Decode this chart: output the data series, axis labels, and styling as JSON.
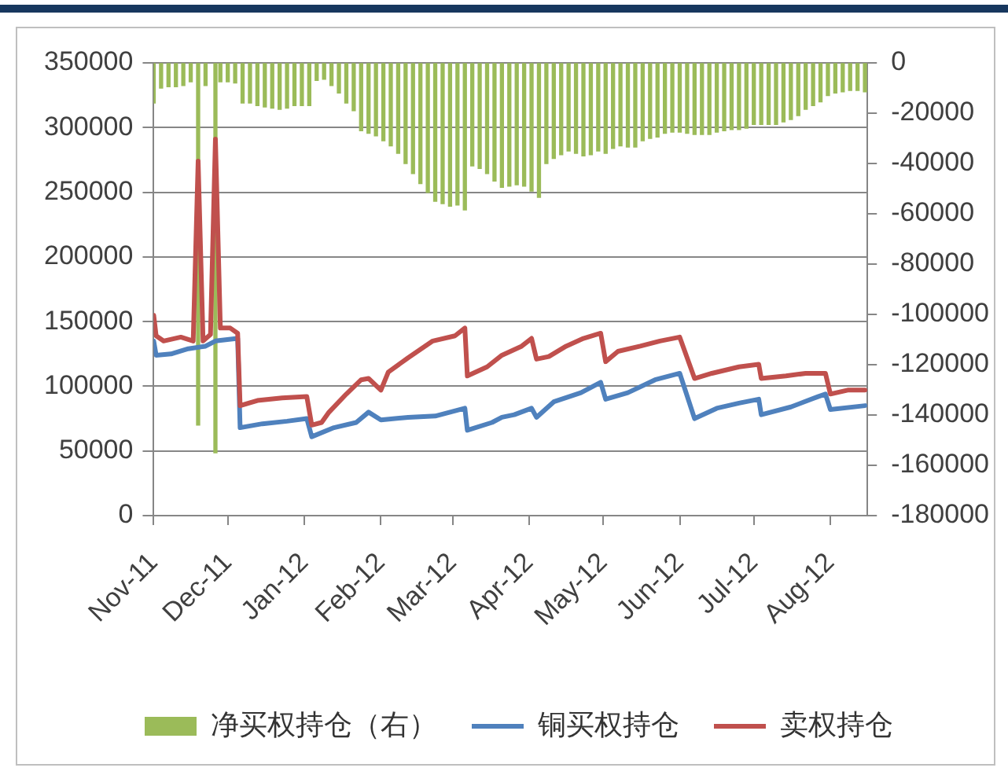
{
  "chart_data": {
    "type": "bar",
    "legend": "bottom",
    "grid": "y",
    "xlim": [
      "2011-11-01",
      "2012-08-16"
    ],
    "xticks": [
      {
        "value": "2011-11-01",
        "label": "Nov-11"
      },
      {
        "value": "2011-12-01",
        "label": "Dec-11"
      },
      {
        "value": "2012-01-01",
        "label": "Jan-12"
      },
      {
        "value": "2012-02-01",
        "label": "Feb-12"
      },
      {
        "value": "2012-03-01",
        "label": "Mar-12"
      },
      {
        "value": "2012-04-01",
        "label": "Apr-12"
      },
      {
        "value": "2012-05-01",
        "label": "May-12"
      },
      {
        "value": "2012-06-01",
        "label": "Jun-12"
      },
      {
        "value": "2012-07-01",
        "label": "Jul-12"
      },
      {
        "value": "2012-08-01",
        "label": "Aug-12"
      }
    ],
    "ylim": [
      0,
      350000
    ],
    "yticks": [
      0,
      50000,
      100000,
      150000,
      200000,
      250000,
      300000,
      350000
    ],
    "y2lim": [
      -180000,
      0
    ],
    "y2ticks": [
      -180000,
      -160000,
      -140000,
      -120000,
      -100000,
      -80000,
      -60000,
      -40000,
      -20000,
      0
    ],
    "series": [
      {
        "name": "净买权持仓（右）",
        "color": "#9bbb59",
        "axis": "y2",
        "x": [
          "2011-11-01",
          "2011-11-04",
          "2011-11-07",
          "2011-11-10",
          "2011-11-13",
          "2011-11-16",
          "2011-11-19",
          "2011-11-22",
          "2011-11-26",
          "2011-11-28",
          "2011-12-01",
          "2011-12-04",
          "2011-12-07",
          "2011-12-10",
          "2011-12-13",
          "2011-12-16",
          "2011-12-19",
          "2011-12-22",
          "2011-12-25",
          "2011-12-28",
          "2011-12-31",
          "2012-01-03",
          "2012-01-06",
          "2012-01-09",
          "2012-01-12",
          "2012-01-15",
          "2012-01-18",
          "2012-01-21",
          "2012-01-24",
          "2012-01-27",
          "2012-01-30",
          "2012-02-02",
          "2012-02-05",
          "2012-02-08",
          "2012-02-11",
          "2012-02-14",
          "2012-02-17",
          "2012-02-20",
          "2012-02-23",
          "2012-02-26",
          "2012-02-29",
          "2012-03-03",
          "2012-03-06",
          "2012-03-09",
          "2012-03-12",
          "2012-03-15",
          "2012-03-18",
          "2012-03-21",
          "2012-03-24",
          "2012-03-27",
          "2012-03-30",
          "2012-04-02",
          "2012-04-05",
          "2012-04-08",
          "2012-04-11",
          "2012-04-14",
          "2012-04-17",
          "2012-04-20",
          "2012-04-23",
          "2012-04-26",
          "2012-04-29",
          "2012-05-02",
          "2012-05-05",
          "2012-05-08",
          "2012-05-11",
          "2012-05-14",
          "2012-05-17",
          "2012-05-20",
          "2012-05-23",
          "2012-05-26",
          "2012-05-29",
          "2012-06-01",
          "2012-06-04",
          "2012-06-07",
          "2012-06-10",
          "2012-06-13",
          "2012-06-16",
          "2012-06-19",
          "2012-06-22",
          "2012-06-25",
          "2012-06-28",
          "2012-07-01",
          "2012-07-04",
          "2012-07-07",
          "2012-07-10",
          "2012-07-13",
          "2012-07-16",
          "2012-07-19",
          "2012-07-22",
          "2012-07-25",
          "2012-07-28",
          "2012-07-31",
          "2012-08-03",
          "2012-08-06",
          "2012-08-09",
          "2012-08-12",
          "2012-08-15"
        ],
        "values": [
          -16000,
          -10000,
          -9500,
          -9500,
          -9000,
          -7500,
          -144000,
          -9000,
          -155000,
          -7500,
          -7500,
          -8000,
          -16000,
          -16000,
          -17000,
          -17500,
          -18000,
          -18500,
          -18000,
          -17000,
          -17000,
          -17000,
          -7000,
          -6500,
          -9000,
          -12000,
          -16000,
          -19000,
          -27000,
          -28000,
          -29000,
          -31000,
          -33000,
          -36000,
          -40000,
          -44000,
          -48000,
          -51500,
          -55000,
          -56000,
          -57000,
          -56500,
          -58500,
          -41000,
          -42000,
          -44000,
          -47000,
          -49500,
          -49000,
          -48500,
          -49000,
          -51000,
          -53500,
          -40000,
          -38000,
          -36500,
          -35000,
          -36000,
          -37000,
          -36500,
          -35000,
          -36000,
          -34000,
          -33000,
          -33500,
          -33500,
          -31000,
          -30000,
          -29500,
          -28000,
          -27500,
          -27500,
          -28000,
          -28500,
          -28500,
          -28500,
          -27500,
          -27000,
          -26500,
          -26500,
          -26000,
          -24500,
          -24500,
          -24500,
          -24500,
          -23500,
          -22500,
          -21000,
          -18500,
          -17000,
          -15500,
          -13000,
          -12000,
          -11500,
          -11000,
          -11000,
          -11500
        ]
      },
      {
        "type": "line",
        "name": "铜买权持仓",
        "color": "#4f81bd",
        "x": [
          "2011-11-01",
          "2011-11-02",
          "2011-11-08",
          "2011-11-15",
          "2011-11-22",
          "2011-11-26",
          "2011-12-05",
          "2011-12-06",
          "2011-12-15",
          "2011-12-25",
          "2012-01-02",
          "2012-01-04",
          "2012-01-13",
          "2012-01-22",
          "2012-01-27",
          "2012-02-01",
          "2012-02-12",
          "2012-02-23",
          "2012-03-06",
          "2012-03-07",
          "2012-03-17",
          "2012-03-21",
          "2012-03-26",
          "2012-04-02",
          "2012-04-04",
          "2012-04-11",
          "2012-04-22",
          "2012-04-30",
          "2012-05-02",
          "2012-05-11",
          "2012-05-22",
          "2012-06-01",
          "2012-06-07",
          "2012-06-16",
          "2012-06-25",
          "2012-07-03",
          "2012-07-04",
          "2012-07-16",
          "2012-07-27",
          "2012-07-30",
          "2012-08-01",
          "2012-08-15"
        ],
        "values": [
          135000,
          124000,
          125000,
          129000,
          131000,
          135000,
          137000,
          68000,
          71000,
          73000,
          75000,
          61000,
          68000,
          72000,
          80000,
          74000,
          76000,
          77000,
          83000,
          66000,
          72000,
          76000,
          78000,
          83000,
          76000,
          88000,
          95000,
          103000,
          90000,
          95000,
          105000,
          110000,
          75000,
          83000,
          87000,
          90000,
          78000,
          84000,
          92000,
          94000,
          82000,
          85000
        ]
      },
      {
        "type": "line",
        "name": "卖权持仓",
        "color": "#c0504d",
        "x": [
          "2011-11-01",
          "2011-11-02",
          "2011-11-05",
          "2011-11-12",
          "2011-11-17",
          "2011-11-19",
          "2011-11-21",
          "2011-11-24",
          "2011-11-26",
          "2011-11-28",
          "2011-12-02",
          "2011-12-05",
          "2011-12-06",
          "2011-12-13",
          "2011-12-23",
          "2012-01-02",
          "2012-01-04",
          "2012-01-08",
          "2012-01-11",
          "2012-01-18",
          "2012-01-24",
          "2012-01-27",
          "2012-02-01",
          "2012-02-04",
          "2012-02-12",
          "2012-02-22",
          "2012-03-02",
          "2012-03-06",
          "2012-03-07",
          "2012-03-15",
          "2012-03-21",
          "2012-03-29",
          "2012-04-02",
          "2012-04-04",
          "2012-04-09",
          "2012-04-16",
          "2012-04-23",
          "2012-04-30",
          "2012-05-02",
          "2012-05-07",
          "2012-05-16",
          "2012-05-24",
          "2012-06-01",
          "2012-06-07",
          "2012-06-14",
          "2012-06-25",
          "2012-07-03",
          "2012-07-04",
          "2012-07-14",
          "2012-07-22",
          "2012-07-30",
          "2012-08-01",
          "2012-08-08",
          "2012-08-15"
        ],
        "values": [
          155000,
          139000,
          135000,
          138000,
          135000,
          274000,
          135000,
          140000,
          291000,
          145000,
          145000,
          141000,
          85000,
          89000,
          91000,
          92000,
          70000,
          72000,
          80000,
          94000,
          105000,
          106000,
          97000,
          111000,
          122000,
          135000,
          139000,
          145000,
          108000,
          115000,
          124000,
          131000,
          137000,
          121000,
          123000,
          131000,
          137000,
          141000,
          119000,
          127000,
          131000,
          135000,
          138000,
          106000,
          110000,
          115000,
          117000,
          106000,
          108000,
          110000,
          110000,
          94000,
          97000,
          97000
        ]
      }
    ]
  }
}
